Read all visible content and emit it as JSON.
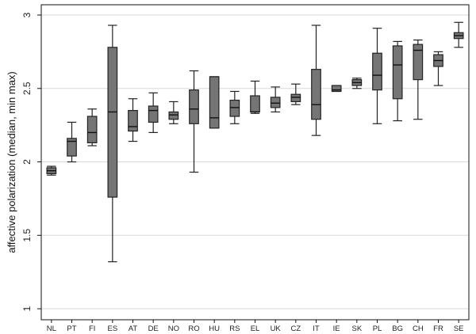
{
  "chart_data": {
    "type": "boxplot",
    "ylabel": "affective polarization (median, min max)",
    "xlabel": "",
    "ylim": [
      1,
      3
    ],
    "yticks": [
      1,
      1.5,
      2,
      2.5,
      3
    ],
    "ytick_labels": [
      "1",
      "1.5",
      "2",
      "2.5",
      "3"
    ],
    "grid": "horizontal",
    "box_color": "#757575",
    "categories": [
      "NL",
      "PT",
      "FI",
      "ES",
      "AT",
      "DE",
      "NO",
      "RO",
      "HU",
      "RS",
      "EL",
      "UK",
      "CZ",
      "IT",
      "IE",
      "SK",
      "PL",
      "BG",
      "CH",
      "FR",
      "SE"
    ],
    "boxes": [
      {
        "name": "NL",
        "min": 1.91,
        "q1": 1.92,
        "median": 1.94,
        "q3": 1.96,
        "max": 1.97
      },
      {
        "name": "PT",
        "min": 2.0,
        "q1": 2.04,
        "median": 2.14,
        "q3": 2.16,
        "max": 2.27
      },
      {
        "name": "FI",
        "min": 2.11,
        "q1": 2.13,
        "median": 2.2,
        "q3": 2.31,
        "max": 2.36
      },
      {
        "name": "ES",
        "min": 1.32,
        "q1": 1.76,
        "median": 2.34,
        "q3": 2.78,
        "max": 2.93
      },
      {
        "name": "AT",
        "min": 2.14,
        "q1": 2.21,
        "median": 2.24,
        "q3": 2.35,
        "max": 2.43
      },
      {
        "name": "DE",
        "min": 2.2,
        "q1": 2.27,
        "median": 2.35,
        "q3": 2.38,
        "max": 2.47
      },
      {
        "name": "NO",
        "min": 2.26,
        "q1": 2.29,
        "median": 2.32,
        "q3": 2.34,
        "max": 2.41
      },
      {
        "name": "RO",
        "min": 1.93,
        "q1": 2.26,
        "median": 2.36,
        "q3": 2.49,
        "max": 2.62
      },
      {
        "name": "HU",
        "min": 2.23,
        "q1": 2.23,
        "median": 2.3,
        "q3": 2.58,
        "max": 2.58
      },
      {
        "name": "RS",
        "min": 2.26,
        "q1": 2.31,
        "median": 2.37,
        "q3": 2.42,
        "max": 2.48
      },
      {
        "name": "EL",
        "min": 2.33,
        "q1": 2.34,
        "median": 2.34,
        "q3": 2.45,
        "max": 2.55
      },
      {
        "name": "UK",
        "min": 2.34,
        "q1": 2.37,
        "median": 2.4,
        "q3": 2.44,
        "max": 2.51
      },
      {
        "name": "CZ",
        "min": 2.39,
        "q1": 2.41,
        "median": 2.44,
        "q3": 2.46,
        "max": 2.53
      },
      {
        "name": "IT",
        "min": 2.18,
        "q1": 2.29,
        "median": 2.39,
        "q3": 2.63,
        "max": 2.93
      },
      {
        "name": "IE",
        "min": 2.48,
        "q1": 2.48,
        "median": 2.49,
        "q3": 2.52,
        "max": 2.52
      },
      {
        "name": "SK",
        "min": 2.5,
        "q1": 2.52,
        "median": 2.54,
        "q3": 2.56,
        "max": 2.57
      },
      {
        "name": "PL",
        "min": 2.26,
        "q1": 2.49,
        "median": 2.59,
        "q3": 2.74,
        "max": 2.91
      },
      {
        "name": "BG",
        "min": 2.28,
        "q1": 2.43,
        "median": 2.66,
        "q3": 2.79,
        "max": 2.82
      },
      {
        "name": "CH",
        "min": 2.29,
        "q1": 2.56,
        "median": 2.76,
        "q3": 2.8,
        "max": 2.83
      },
      {
        "name": "FR",
        "min": 2.52,
        "q1": 2.65,
        "median": 2.69,
        "q3": 2.73,
        "max": 2.75
      },
      {
        "name": "SE",
        "min": 2.78,
        "q1": 2.84,
        "median": 2.86,
        "q3": 2.88,
        "max": 2.95
      }
    ]
  }
}
